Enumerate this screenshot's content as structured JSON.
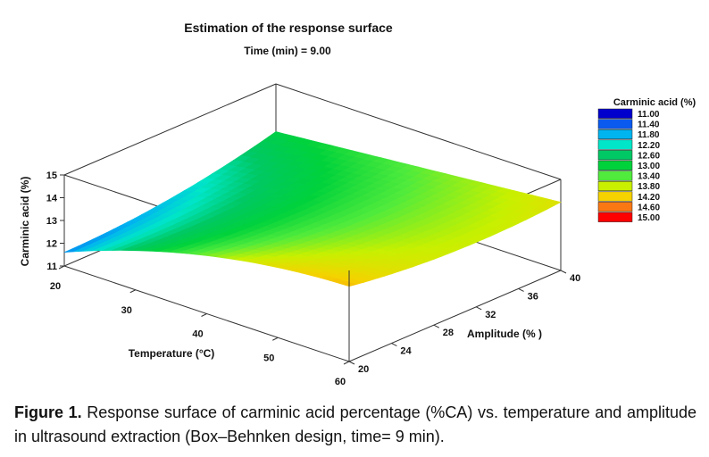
{
  "figure": {
    "caption_label": "Figure 1.",
    "caption_text": "Response surface of carminic acid percentage (%CA) vs. temperature and amplitude in ultrasound extraction (Box–Behnken design, time= 9 min)."
  },
  "chart_data": {
    "type": "surface",
    "title": "Estimation of the response surface",
    "subtitle": "Time (min) = 9.00",
    "xlabel": "Temperature (°C)",
    "ylabel": "Amplitude (% )",
    "zlabel": "Carminic acid (%)",
    "x_ticks": [
      "20",
      "30",
      "40",
      "50",
      "60"
    ],
    "y_ticks": [
      "20",
      "24",
      "28",
      "32",
      "36",
      "40"
    ],
    "z_ticks": [
      "11",
      "12",
      "13",
      "14",
      "15"
    ],
    "xlim": [
      20,
      60
    ],
    "ylim": [
      20,
      40
    ],
    "zlim": [
      11,
      15
    ],
    "corner_values": [
      {
        "temperature": 20,
        "amplitude": 20,
        "carminic_acid": 11.6
      },
      {
        "temperature": 60,
        "amplitude": 20,
        "carminic_acid": 14.3
      },
      {
        "temperature": 20,
        "amplitude": 40,
        "carminic_acid": 12.9
      },
      {
        "temperature": 60,
        "amplitude": 40,
        "carminic_acid": 14.0
      }
    ],
    "curvature": {
      "temperature": -1.0,
      "amplitude": -0.3
    },
    "legend": {
      "title": "Carminic acid (%)",
      "position": "right",
      "levels": [
        "11.00",
        "11.40",
        "11.80",
        "12.20",
        "12.60",
        "13.00",
        "13.40",
        "13.80",
        "14.20",
        "14.60",
        "15.00"
      ],
      "colors": [
        "#0000cd",
        "#0a5af0",
        "#00b4f0",
        "#00e6c8",
        "#00c864",
        "#00d23c",
        "#50eb3c",
        "#c8f000",
        "#f5d200",
        "#fa7814",
        "#ff0000"
      ]
    }
  }
}
